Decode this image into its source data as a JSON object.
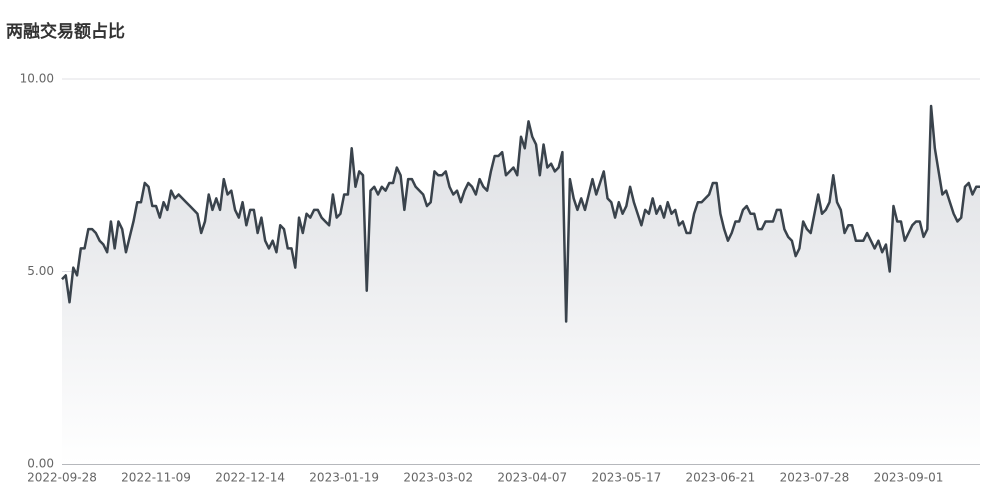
{
  "chart_data": {
    "type": "area-line",
    "title": "两融交易额占比",
    "color": "#3a434c",
    "categories": [
      "2022-09-28",
      null,
      null,
      null,
      null,
      null,
      null,
      null,
      null,
      null,
      null,
      null,
      null,
      null,
      null,
      null,
      null,
      null,
      null,
      null,
      null,
      null,
      null,
      null,
      null,
      "2022-11-09",
      null,
      null,
      null,
      null,
      null,
      null,
      null,
      null,
      null,
      null,
      null,
      null,
      null,
      null,
      null,
      null,
      null,
      null,
      null,
      null,
      null,
      null,
      null,
      null,
      "2022-12-14",
      null,
      null,
      null,
      null,
      null,
      null,
      null,
      null,
      null,
      null,
      null,
      null,
      null,
      null,
      null,
      null,
      null,
      null,
      null,
      null,
      null,
      null,
      null,
      null,
      "2023-01-19",
      null,
      null,
      null,
      null,
      null,
      null,
      null,
      null,
      null,
      null,
      null,
      null,
      null,
      null,
      null,
      null,
      null,
      null,
      null,
      null,
      null,
      null,
      null,
      null,
      "2023-03-02",
      null,
      null,
      null,
      null,
      null,
      null,
      null,
      null,
      null,
      null,
      null,
      null,
      null,
      null,
      null,
      null,
      null,
      null,
      null,
      null,
      null,
      null,
      null,
      null,
      "2023-04-07",
      null,
      null,
      null,
      null,
      null,
      null,
      null,
      null,
      null,
      null,
      null,
      null,
      null,
      null,
      null,
      null,
      null,
      null,
      null,
      null,
      null,
      null,
      null,
      null,
      "2023-05-17",
      null,
      null,
      null,
      null,
      null,
      null,
      null,
      null,
      null,
      null,
      null,
      null,
      null,
      null,
      null,
      null,
      null,
      null,
      null,
      null,
      null,
      null,
      null,
      null,
      "2023-06-21",
      null,
      null,
      null,
      null,
      null,
      null,
      null,
      null,
      null,
      null,
      null,
      null,
      null,
      null,
      null,
      null,
      null,
      null,
      null,
      null,
      null,
      null,
      null,
      null,
      "2023-07-28",
      null,
      null,
      null,
      null,
      null,
      null,
      null,
      null,
      null,
      null,
      null,
      null,
      null,
      null,
      null,
      null,
      null,
      null,
      null,
      null,
      null,
      null,
      null,
      null,
      "2023-09-01",
      null,
      null,
      null,
      null,
      null,
      null,
      null,
      null,
      null,
      null,
      null,
      null,
      null,
      null,
      null,
      null,
      null,
      null,
      null
    ],
    "values": [
      4.8,
      4.9,
      4.2,
      5.1,
      4.9,
      5.6,
      5.6,
      6.1,
      6.1,
      6.0,
      5.8,
      5.7,
      5.5,
      6.3,
      5.6,
      6.3,
      6.1,
      5.5,
      5.9,
      6.3,
      6.8,
      6.8,
      7.3,
      7.2,
      6.7,
      6.7,
      6.4,
      6.8,
      6.6,
      7.1,
      6.9,
      7.0,
      6.9,
      6.8,
      6.7,
      6.6,
      6.5,
      6.0,
      6.3,
      7.0,
      6.6,
      6.9,
      6.6,
      7.4,
      7.0,
      7.1,
      6.6,
      6.4,
      6.8,
      6.2,
      6.6,
      6.6,
      6.0,
      6.4,
      5.8,
      5.6,
      5.8,
      5.5,
      6.2,
      6.1,
      5.6,
      5.6,
      5.1,
      6.4,
      6.0,
      6.5,
      6.4,
      6.6,
      6.6,
      6.4,
      6.3,
      6.2,
      7.0,
      6.4,
      6.5,
      7.0,
      7.0,
      8.2,
      7.2,
      7.6,
      7.5,
      4.5,
      7.1,
      7.2,
      7.0,
      7.2,
      7.1,
      7.3,
      7.3,
      7.7,
      7.5,
      6.6,
      7.4,
      7.4,
      7.2,
      7.1,
      7.0,
      6.7,
      6.8,
      7.6,
      7.5,
      7.5,
      7.6,
      7.2,
      7.0,
      7.1,
      6.8,
      7.1,
      7.3,
      7.2,
      7.0,
      7.4,
      7.2,
      7.1,
      7.6,
      8.0,
      8.0,
      8.1,
      7.5,
      7.6,
      7.7,
      7.5,
      8.5,
      8.2,
      8.9,
      8.5,
      8.3,
      7.5,
      8.3,
      7.7,
      7.8,
      7.6,
      7.7,
      8.1,
      3.7,
      7.4,
      6.9,
      6.6,
      6.9,
      6.6,
      7.0,
      7.4,
      7.0,
      7.3,
      7.6,
      6.9,
      6.8,
      6.4,
      6.8,
      6.5,
      6.7,
      7.2,
      6.8,
      6.5,
      6.2,
      6.6,
      6.5,
      6.9,
      6.5,
      6.7,
      6.4,
      6.8,
      6.5,
      6.6,
      6.2,
      6.3,
      6.0,
      6.0,
      6.5,
      6.8,
      6.8,
      6.9,
      7.0,
      7.3,
      7.3,
      6.5,
      6.1,
      5.8,
      6.0,
      6.3,
      6.3,
      6.6,
      6.7,
      6.5,
      6.5,
      6.1,
      6.1,
      6.3,
      6.3,
      6.3,
      6.6,
      6.6,
      6.1,
      5.9,
      5.8,
      5.4,
      5.6,
      6.3,
      6.1,
      6.0,
      6.5,
      7.0,
      6.5,
      6.6,
      6.8,
      7.5,
      6.8,
      6.6,
      6.0,
      6.2,
      6.2,
      5.8,
      5.8,
      5.8,
      6.0,
      5.8,
      5.6,
      5.8,
      5.5,
      5.7,
      5.0,
      6.7,
      6.3,
      6.3,
      5.8,
      6.0,
      6.2,
      6.3,
      6.3,
      5.9,
      6.1,
      9.3,
      8.2,
      7.6,
      7.0,
      7.1,
      6.8,
      6.5,
      6.3,
      6.4,
      7.2,
      7.3,
      7.0,
      7.2,
      7.2
    ],
    "ylim": [
      0,
      10
    ],
    "yticks": [
      {
        "value": 0,
        "label": "0.00"
      },
      {
        "value": 5,
        "label": "5.00"
      },
      {
        "value": 10,
        "label": "10.00"
      }
    ],
    "grid": true
  }
}
